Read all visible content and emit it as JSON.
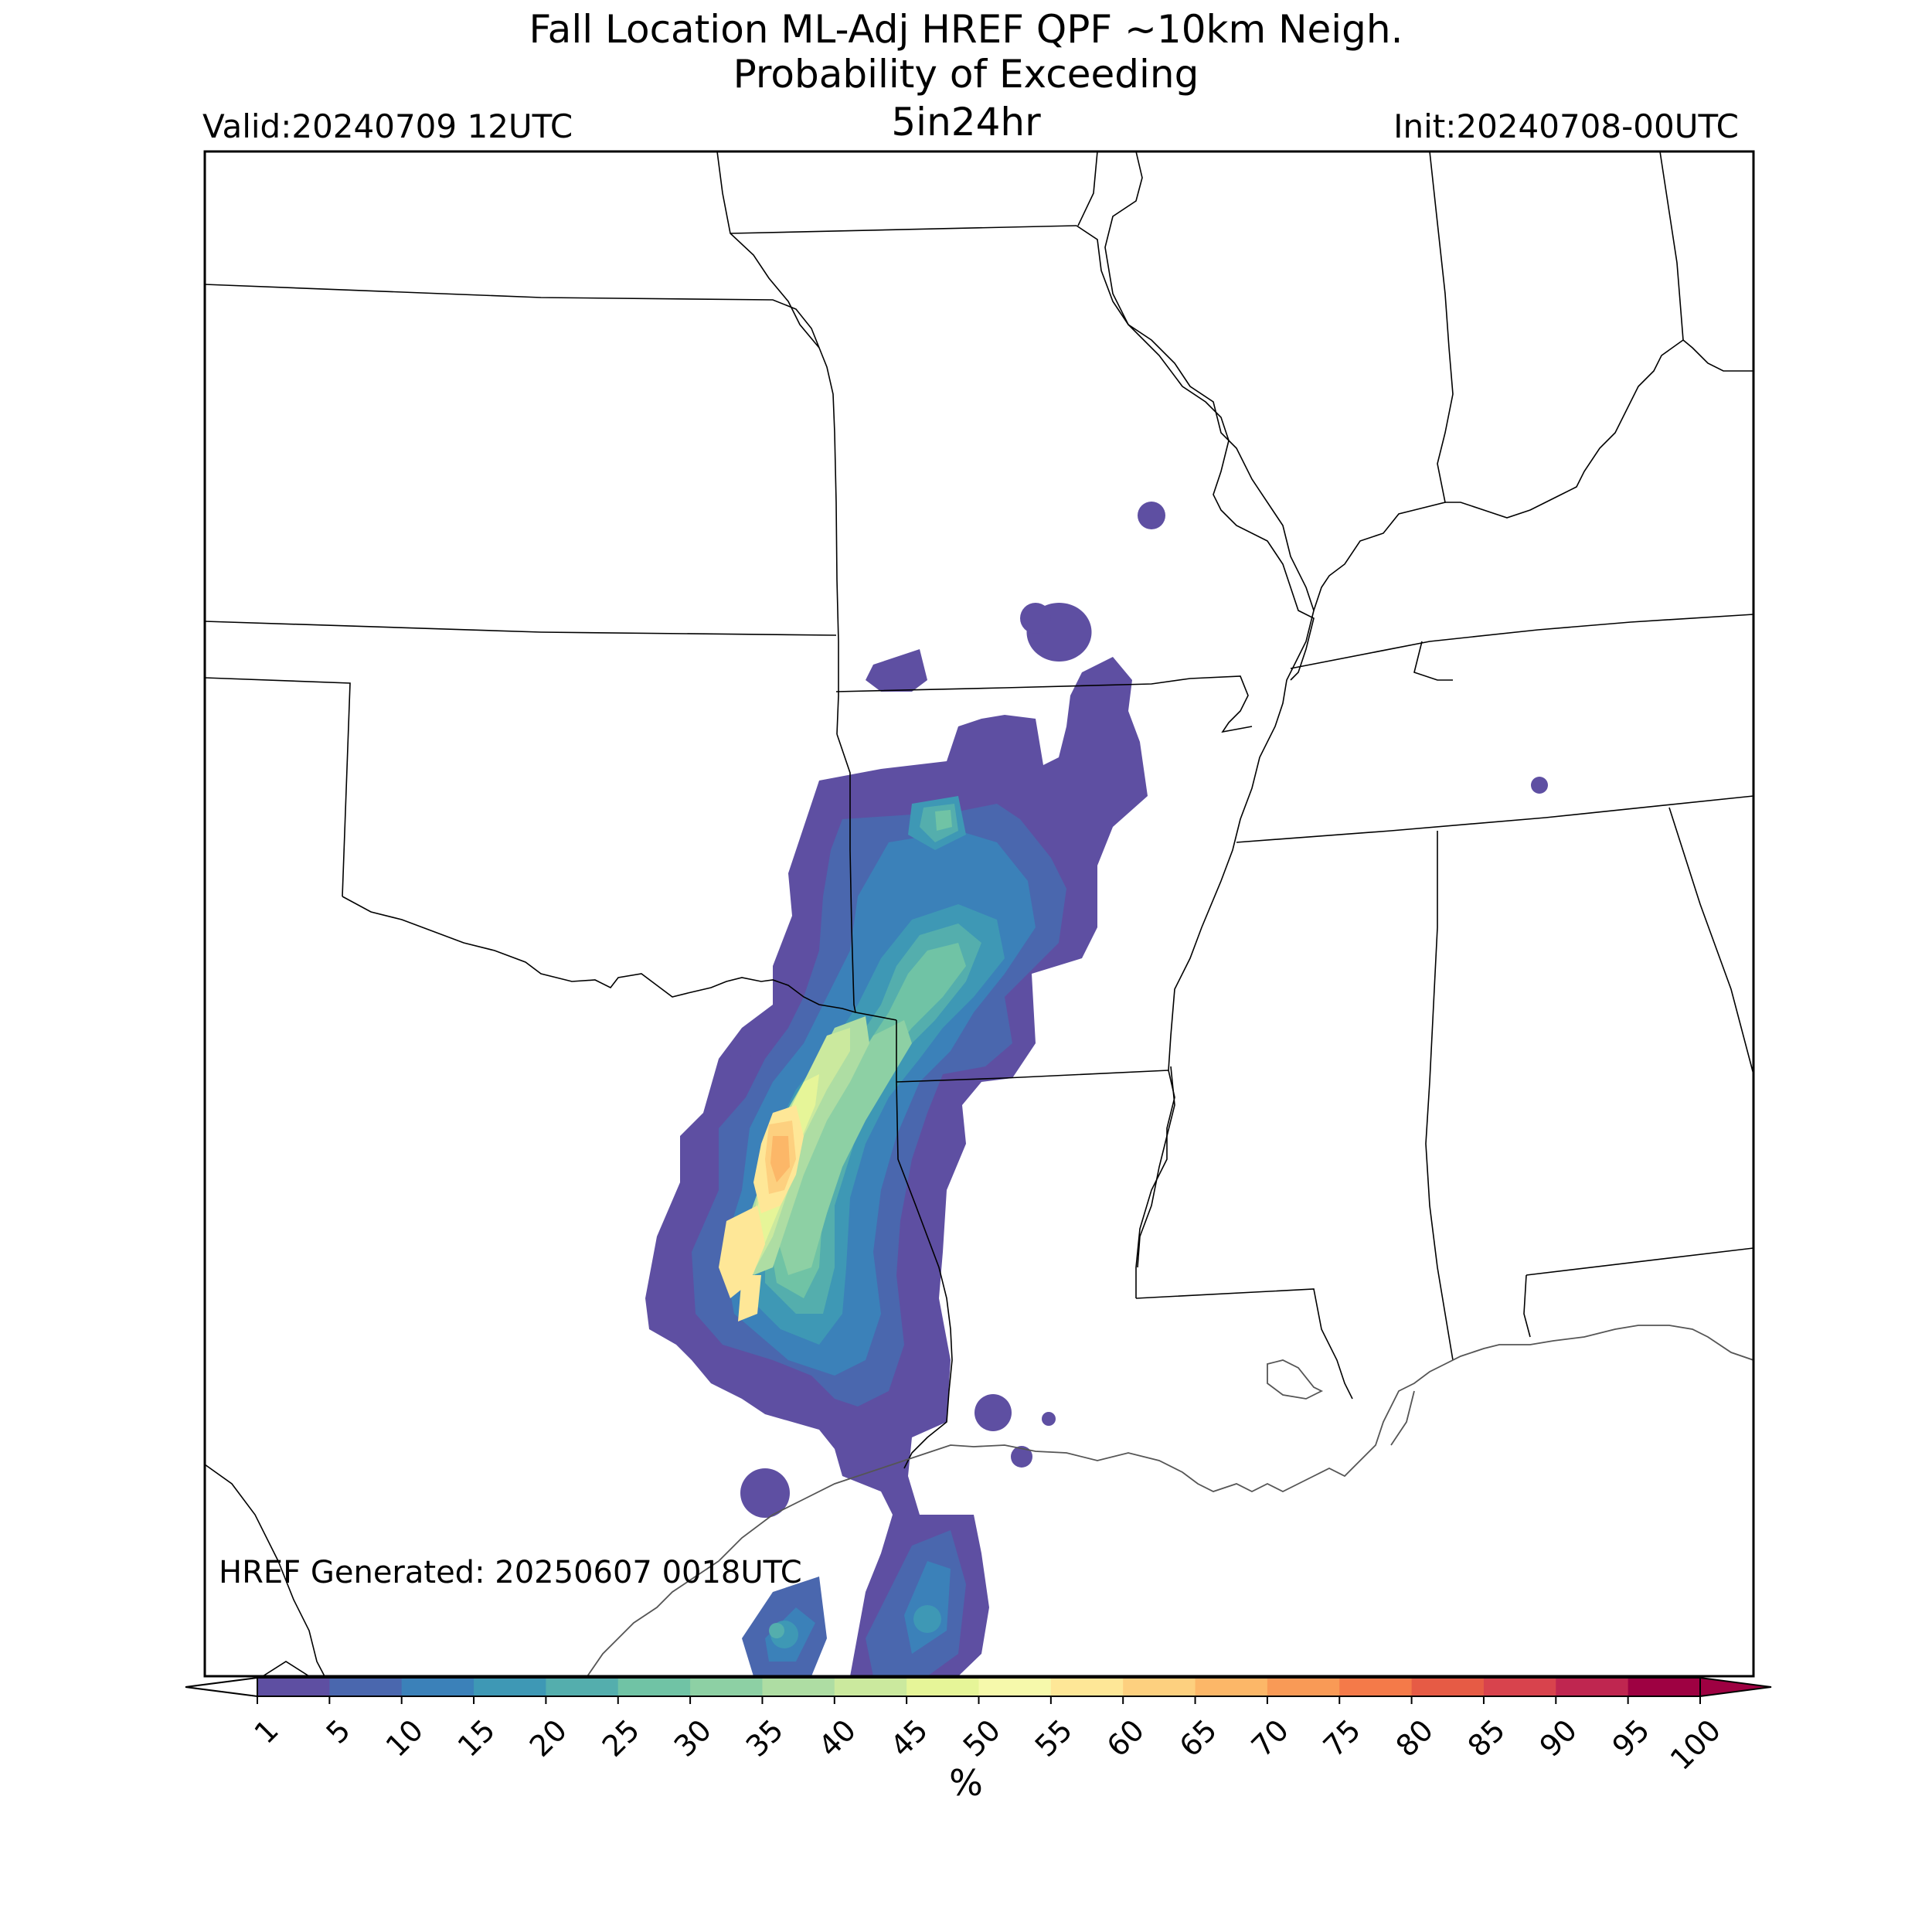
{
  "title": {
    "line1": "Fall Location ML-Adj HREF QPF ~10km Neigh.",
    "line2": "Probability of Exceeding",
    "line3": "5in24hr"
  },
  "valid_label": "Valid:20240709 12UTC",
  "init_label": "Init:20240708-00UTC",
  "generated_label": "HREF Generated: 20250607 0018UTC",
  "colorbar": {
    "unit_label": "%",
    "ticks": [
      "1",
      "5",
      "10",
      "15",
      "20",
      "25",
      "30",
      "35",
      "40",
      "45",
      "50",
      "55",
      "60",
      "65",
      "70",
      "75",
      "80",
      "85",
      "90",
      "95",
      "100"
    ],
    "colors": [
      "#5e4fa2",
      "#4a67ae",
      "#3b81b9",
      "#3e98b5",
      "#54aead",
      "#70c3a5",
      "#8dd0a4",
      "#aedda3",
      "#cbe99e",
      "#e6f598",
      "#f6f9ab",
      "#fee797",
      "#fdd07f",
      "#fcb768",
      "#f99a56",
      "#f47a49",
      "#e65b45",
      "#d8434d",
      "#bf2650",
      "#9e0142"
    ]
  },
  "map_legend_colors": {
    "land_outline": "#000000",
    "lakes": "#eef2f8"
  }
}
